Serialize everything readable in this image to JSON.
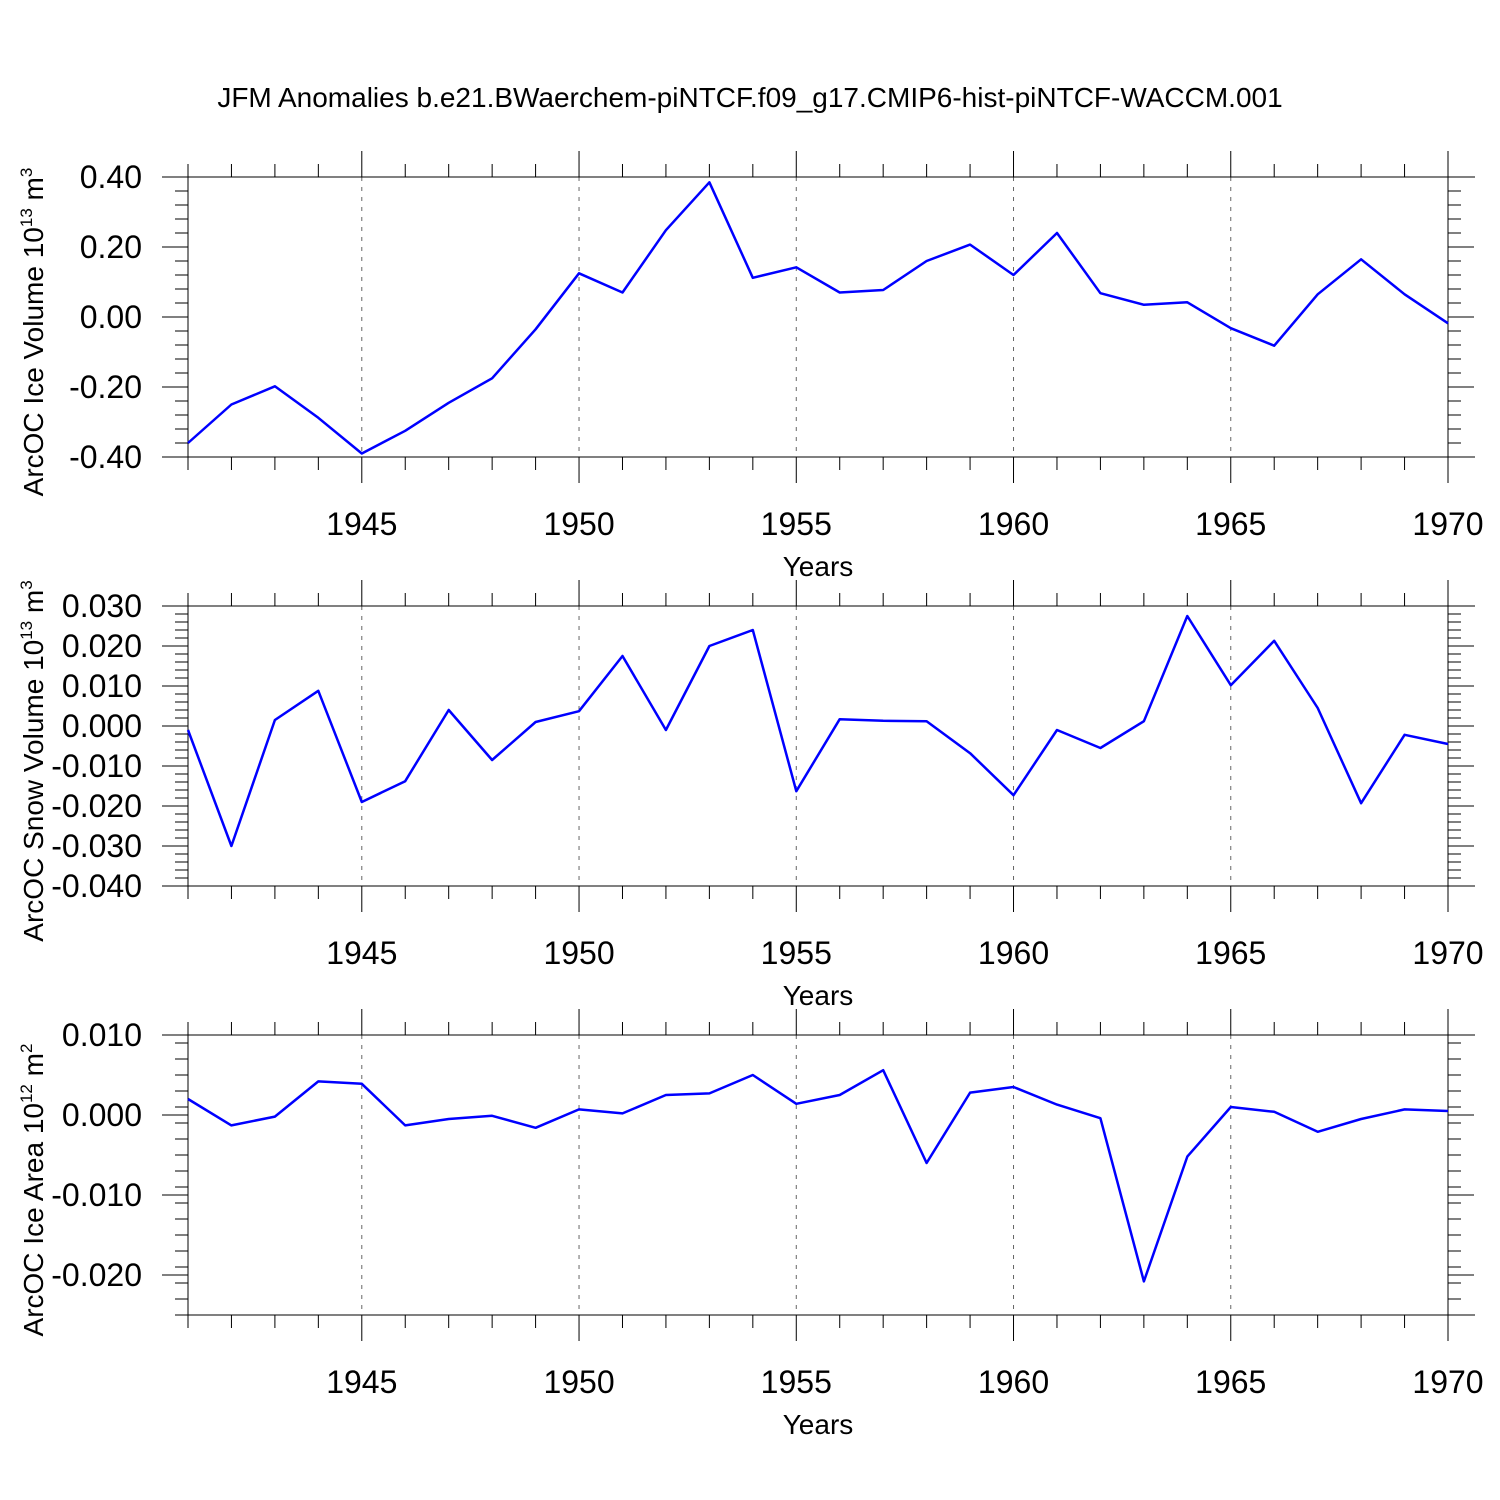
{
  "title": "JFM Anomalies b.e21.BWaerchem-piNTCF.f09_g17.CMIP6-hist-piNTCF-WACCM.001",
  "chart_data": [
    {
      "type": "line",
      "ylabel": "ArcOC Ice Volume 10",
      "ylabel_exp": "13",
      "ylabel_unit": "m",
      "ylabel_unit_exp": "3",
      "xlabel": "Years",
      "xlim": [
        1941,
        1970
      ],
      "ylim": [
        -0.4,
        0.4
      ],
      "yticks": [
        -0.4,
        -0.2,
        0.0,
        0.2,
        0.4
      ],
      "ytick_labels": [
        "-0.40",
        "-0.20",
        "0.00",
        "0.20",
        "0.40"
      ],
      "xticks": [
        1945,
        1950,
        1955,
        1960,
        1965,
        1970
      ],
      "xtick_labels": [
        "1945",
        "1950",
        "1955",
        "1960",
        "1965",
        "1970"
      ],
      "color": "#0000ff",
      "x": [
        1941,
        1942,
        1943,
        1944,
        1945,
        1946,
        1947,
        1948,
        1949,
        1950,
        1951,
        1952,
        1953,
        1954,
        1955,
        1956,
        1957,
        1958,
        1959,
        1960,
        1961,
        1962,
        1963,
        1964,
        1965,
        1966,
        1967,
        1968,
        1969,
        1970
      ],
      "values": [
        -0.36,
        -0.25,
        -0.198,
        -0.288,
        -0.39,
        -0.325,
        -0.245,
        -0.175,
        -0.035,
        0.125,
        0.07,
        0.248,
        0.385,
        0.112,
        0.142,
        0.07,
        0.077,
        0.16,
        0.207,
        0.12,
        0.24,
        0.068,
        0.035,
        0.042,
        -0.032,
        -0.082,
        0.065,
        0.165,
        0.065,
        -0.018
      ]
    },
    {
      "type": "line",
      "ylabel": "ArcOC Snow Volume 10",
      "ylabel_exp": "13",
      "ylabel_unit": "m",
      "ylabel_unit_exp": "3",
      "xlabel": "Years",
      "xlim": [
        1941,
        1970
      ],
      "ylim": [
        -0.04,
        0.03
      ],
      "yticks": [
        -0.04,
        -0.03,
        -0.02,
        -0.01,
        0.0,
        0.01,
        0.02,
        0.03
      ],
      "ytick_labels": [
        "-0.040",
        "-0.030",
        "-0.020",
        "-0.010",
        "0.000",
        "0.010",
        "0.020",
        "0.030"
      ],
      "xticks": [
        1945,
        1950,
        1955,
        1960,
        1965,
        1970
      ],
      "xtick_labels": [
        "1945",
        "1950",
        "1955",
        "1960",
        "1965",
        "1970"
      ],
      "color": "#0000ff",
      "x": [
        1941,
        1942,
        1943,
        1944,
        1945,
        1946,
        1947,
        1948,
        1949,
        1950,
        1951,
        1952,
        1953,
        1954,
        1955,
        1956,
        1957,
        1958,
        1959,
        1960,
        1961,
        1962,
        1963,
        1964,
        1965,
        1966,
        1967,
        1968,
        1969,
        1970
      ],
      "values": [
        -0.001,
        -0.03,
        0.0015,
        0.0088,
        -0.019,
        -0.0138,
        0.004,
        -0.0085,
        0.001,
        0.0037,
        0.0175,
        -0.001,
        0.02,
        0.024,
        -0.0163,
        0.0017,
        0.0013,
        0.0012,
        -0.0068,
        -0.0173,
        -0.001,
        -0.0055,
        0.0012,
        0.0275,
        0.0102,
        0.0213,
        0.0045,
        -0.0193,
        -0.0022,
        -0.0045
      ]
    },
    {
      "type": "line",
      "ylabel": "ArcOC Ice Area 10",
      "ylabel_exp": "12",
      "ylabel_unit": "m",
      "ylabel_unit_exp": "2",
      "xlabel": "Years",
      "xlim": [
        1941,
        1970
      ],
      "ylim": [
        -0.025,
        0.01
      ],
      "yticks": [
        -0.02,
        -0.01,
        0.0,
        0.01
      ],
      "ytick_labels": [
        "-0.020",
        "-0.010",
        "0.000",
        "0.010"
      ],
      "xticks": [
        1945,
        1950,
        1955,
        1960,
        1965,
        1970
      ],
      "xtick_labels": [
        "1945",
        "1950",
        "1955",
        "1960",
        "1965",
        "1970"
      ],
      "color": "#0000ff",
      "x": [
        1941,
        1942,
        1943,
        1944,
        1945,
        1946,
        1947,
        1948,
        1949,
        1950,
        1951,
        1952,
        1953,
        1954,
        1955,
        1956,
        1957,
        1958,
        1959,
        1960,
        1961,
        1962,
        1963,
        1964,
        1965,
        1966,
        1967,
        1968,
        1969,
        1970
      ],
      "values": [
        0.002,
        -0.0013,
        -0.0002,
        0.0042,
        0.0039,
        -0.0013,
        -0.0005,
        -0.0001,
        -0.0016,
        0.0007,
        0.0002,
        0.0025,
        0.0027,
        0.005,
        0.0014,
        0.0025,
        0.0056,
        -0.006,
        0.0028,
        0.0035,
        0.0013,
        -0.0004,
        -0.0208,
        -0.0052,
        0.001,
        0.0004,
        -0.0021,
        -0.0005,
        0.0007,
        0.0005
      ]
    }
  ]
}
